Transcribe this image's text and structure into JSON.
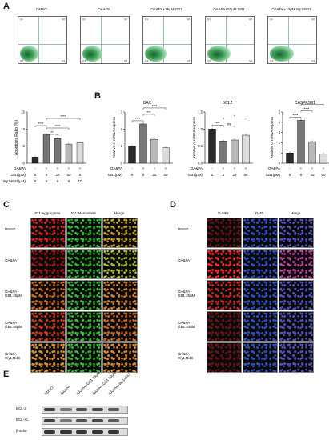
{
  "panel_letters": {
    "a": "A",
    "b": "B",
    "c": "C",
    "d": "D",
    "e": "E"
  },
  "flow": {
    "titles": [
      "DMSO",
      "OA&PA",
      "OA&PA+25μM GB1",
      "OA&PA+50μM GB1",
      "OA&PA+10μM Wy14643"
    ],
    "quadrants": [
      [
        "Q1",
        "Q2",
        "Q3",
        "Q4"
      ],
      [
        "Q1",
        "Q2",
        "Q3",
        "Q4"
      ],
      [
        "Q1",
        "Q2",
        "Q3",
        "Q4"
      ],
      [
        "Q1",
        "Q2",
        "Q3",
        "Q4"
      ],
      [
        "Q1",
        "Q2",
        "Q3",
        "Q4"
      ]
    ]
  },
  "apoptosis_chart": {
    "ylabel": "Apoptosis Ratio (%)",
    "ylim": [
      0,
      15
    ],
    "yticks": [
      "0",
      "5",
      "10",
      "15"
    ],
    "row_labels": [
      "OA&PA",
      "GB1(μM)",
      "Wy14643(μM)"
    ],
    "rows": [
      [
        "-",
        "+",
        "+",
        "+",
        "+"
      ],
      [
        "0",
        "0",
        "25",
        "50",
        "0"
      ],
      [
        "0",
        "0",
        "0",
        "0",
        "10"
      ]
    ],
    "sig": [
      "****",
      "**",
      "****",
      "****"
    ]
  },
  "chart_data": [
    {
      "type": "bar",
      "title": "BAX",
      "ylabel": "Relative of mRNA express",
      "categories": [
        "-/0",
        "+/0",
        "+/25",
        "+/50"
      ],
      "values": [
        1.0,
        2.3,
        1.4,
        0.9
      ],
      "ylim": [
        0,
        3
      ],
      "yticks": [
        "0",
        "1",
        "2",
        "3"
      ],
      "sig": [
        "****",
        "***",
        "****"
      ]
    },
    {
      "type": "bar",
      "title": "BCL2",
      "ylabel": "Relative of mRNA express",
      "categories": [
        "-/0",
        "+/0",
        "+/25",
        "+/50"
      ],
      "values": [
        1.0,
        0.65,
        0.68,
        0.82
      ],
      "ylim": [
        0,
        1.5
      ],
      "yticks": [
        "0.0",
        "0.5",
        "1.0",
        "1.5"
      ],
      "sig": [
        "***",
        "ns",
        "*"
      ]
    },
    {
      "type": "bar",
      "title": "CASPASE1",
      "ylabel": "Relative of mRNA express",
      "categories": [
        "-/0",
        "+/0",
        "+/25",
        "+/50"
      ],
      "values": [
        1.0,
        4.2,
        2.1,
        0.9
      ],
      "ylim": [
        0,
        5
      ],
      "yticks": [
        "0",
        "1",
        "2",
        "3",
        "4",
        "5"
      ],
      "sig": [
        "****",
        "****",
        "****"
      ]
    }
  ],
  "mrna_rows": {
    "labels": [
      "OA&PA",
      "GB1(μM)"
    ],
    "rows": [
      [
        "-",
        "+",
        "+",
        "+"
      ],
      [
        "0",
        "0",
        "25",
        "50"
      ]
    ]
  },
  "panel_c": {
    "headers": [
      "JC1-Aggregates",
      "JC1-Momomers",
      "Merge"
    ],
    "rows": [
      "DMSO",
      "OA&PA",
      "OA&PA+\nGB1  25μM",
      "OA&PA+\nGB1  50μM",
      "OA&PA+\nWy14643"
    ]
  },
  "panel_d": {
    "headers": [
      "TUNEL",
      "DAPI",
      "Merge"
    ],
    "rows": [
      "DMSO",
      "OA&PA",
      "OA&PA+\nGB1 25uM",
      "OA&PA+\nGB1 50uM",
      "OA&PA+\nWy14643"
    ]
  },
  "panel_e": {
    "lanes": [
      "DMSO",
      "OA&PA",
      "OA&PA+GB1 25μM",
      "OA&PA+GB1 50μM",
      "OA&PA+Wy14643"
    ],
    "bands": [
      "BCL-2",
      "BCL-XL",
      "β-actin"
    ]
  },
  "colors": {
    "bar_dark": "#2b2b2b",
    "bar_mid": "#777777",
    "bar_light": "#b8b8b8",
    "bar_pale": "#dcdcdc",
    "flow_blob": "#3da05a",
    "red_signal": "#d42222",
    "green_signal": "#33bb33",
    "blue_signal": "#3050c8"
  }
}
